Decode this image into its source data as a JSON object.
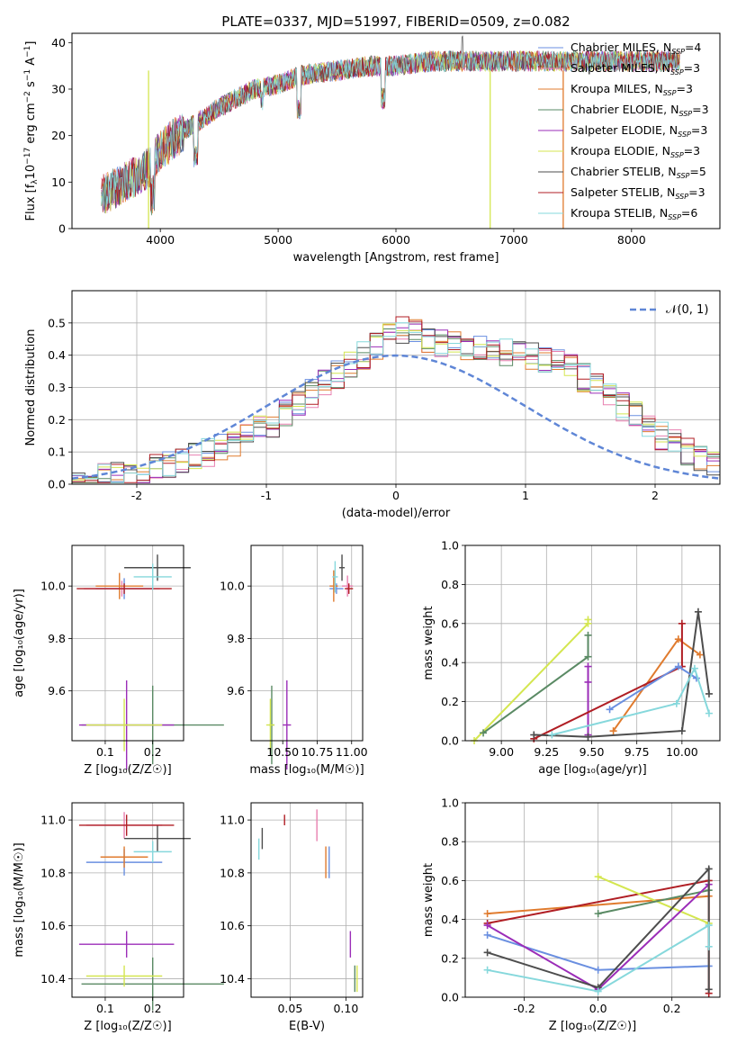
{
  "colors": {
    "Chabrier MILES": "#6a8fe0",
    "Salpeter MILES": "#e880b0",
    "Kroupa MILES": "#e07b2e",
    "Chabrier ELODIE": "#5a8a64",
    "Salpeter ELODIE": "#9b2db8",
    "Kroupa ELODIE": "#d4e650",
    "Chabrier STELIB": "#4d4d4d",
    "Salpeter STELIB": "#b01e24",
    "Kroupa STELIB": "#86d8dc",
    "normal": "#5f86d6"
  },
  "chart_data": [
    {
      "id": "spectrum",
      "type": "line",
      "title": "PLATE=0337, MJD=51997, FIBERID=0509, z=0.082",
      "xlabel": "wavelength [Angstrom, rest frame]",
      "ylabel_parts": [
        "Flux [f",
        "λ",
        "10",
        "−17",
        " erg cm",
        "−2",
        " s",
        "−1",
        " A",
        "−1",
        "]"
      ],
      "xlim": [
        3250,
        8750
      ],
      "ylim": [
        0,
        42
      ],
      "xticks": [
        4000,
        5000,
        6000,
        7000,
        8000
      ],
      "yticks": [
        0,
        10,
        20,
        30,
        40
      ],
      "legend_position": "right",
      "legend": [
        {
          "name": "Chabrier MILES",
          "nssp": "4"
        },
        {
          "name": "Salpeter MILES",
          "nssp": "3"
        },
        {
          "name": "Kroupa MILES",
          "nssp": "3"
        },
        {
          "name": "Chabrier ELODIE",
          "nssp": "3"
        },
        {
          "name": "Salpeter ELODIE",
          "nssp": "3"
        },
        {
          "name": "Kroupa ELODIE",
          "nssp": "3"
        },
        {
          "name": "Chabrier STELIB",
          "nssp": "5"
        },
        {
          "name": "Salpeter STELIB",
          "nssp": "3"
        },
        {
          "name": "Kroupa STELIB",
          "nssp": "6"
        }
      ],
      "continuum_x": [
        3500,
        3700,
        3900,
        4000,
        4200,
        4500,
        4800,
        5000,
        5200,
        5500,
        5800,
        6000,
        6300,
        6600,
        6900,
        7200,
        7500,
        7800,
        8100,
        8400
      ],
      "continuum_y": [
        7,
        10,
        13,
        17,
        21,
        26,
        30,
        31,
        33,
        34,
        35,
        35,
        36,
        36,
        36,
        36,
        36,
        36,
        36,
        36
      ],
      "dips_x": [
        3934,
        4300,
        5175,
        5890,
        6800,
        7400
      ],
      "dropouts": [
        {
          "series": "Kroupa ELODIE",
          "x": 6800
        },
        {
          "series": "Kroupa MILES",
          "x": 7420
        },
        {
          "series": "Kroupa ELODIE",
          "x": 3900
        }
      ]
    },
    {
      "id": "residuals",
      "type": "step",
      "xlabel": "(data-model)/error",
      "ylabel": "Normed distribution",
      "xlim": [
        -2.5,
        2.5
      ],
      "ylim": [
        0,
        0.6
      ],
      "xticks": [
        -2,
        -1,
        0,
        1,
        2
      ],
      "yticks": [
        0.0,
        0.1,
        0.2,
        0.3,
        0.4,
        0.5
      ],
      "grid": true,
      "legend": [
        {
          "name": "𝒩(0, 1)",
          "style": "dashed",
          "position": "top-right"
        }
      ],
      "bin_edges_start": -2.5,
      "bin_width": 0.1,
      "base_counts": [
        0.02,
        0.02,
        0.03,
        0.03,
        0.04,
        0.04,
        0.05,
        0.06,
        0.07,
        0.09,
        0.1,
        0.11,
        0.13,
        0.15,
        0.17,
        0.19,
        0.22,
        0.25,
        0.28,
        0.31,
        0.34,
        0.37,
        0.4,
        0.43,
        0.46,
        0.48,
        0.47,
        0.45,
        0.44,
        0.43,
        0.42,
        0.42,
        0.41,
        0.41,
        0.4,
        0.4,
        0.39,
        0.38,
        0.36,
        0.33,
        0.3,
        0.27,
        0.24,
        0.21,
        0.18,
        0.15,
        0.13,
        0.1,
        0.08,
        0.07
      ]
    },
    {
      "id": "age_vs_Z",
      "type": "errorbar",
      "xlabel": "Z [log₁₀(Z/Z☉)]",
      "ylabel": "age  [log₁₀(age/yr)]",
      "xlim": [
        0.03,
        0.265
      ],
      "ylim": [
        9.41,
        10.155
      ],
      "xticks": [
        0.1,
        0.2
      ],
      "yticks": [
        9.6,
        9.8,
        10.0
      ],
      "grid": true,
      "points": [
        {
          "series": "Chabrier MILES",
          "x": 0.14,
          "y": 9.99,
          "xerr": 0.06,
          "yerr": 0.04
        },
        {
          "series": "Salpeter MILES",
          "x": 0.135,
          "y": 9.99,
          "xerr": 0.08,
          "yerr": 0.03
        },
        {
          "series": "Kroupa MILES",
          "x": 0.13,
          "y": 10.0,
          "xerr": 0.05,
          "yerr": 0.05
        },
        {
          "series": "Chabrier ELODIE",
          "x": 0.2,
          "y": 9.47,
          "xerr": 0.15,
          "yerr": 0.15
        },
        {
          "series": "Salpeter ELODIE",
          "x": 0.145,
          "y": 9.47,
          "xerr": 0.1,
          "yerr": 0.17
        },
        {
          "series": "Kroupa ELODIE",
          "x": 0.14,
          "y": 9.47,
          "xerr": 0.08,
          "yerr": 0.1
        },
        {
          "series": "Chabrier STELIB",
          "x": 0.21,
          "y": 10.07,
          "xerr": 0.07,
          "yerr": 0.05
        },
        {
          "series": "Salpeter STELIB",
          "x": 0.14,
          "y": 9.99,
          "xerr": 0.1,
          "yerr": 0.02
        },
        {
          "series": "Kroupa STELIB",
          "x": 0.2,
          "y": 10.035,
          "xerr": 0.04,
          "yerr": 0.05
        }
      ]
    },
    {
      "id": "age_vs_mass",
      "type": "errorbar",
      "xlabel": "mass [log₁₀(M/M☉)]",
      "ylabel": "",
      "xlim": [
        10.27,
        11.08
      ],
      "ylim": [
        9.41,
        10.155
      ],
      "xticks": [
        10.5,
        10.75,
        11.0
      ],
      "yticks": [
        9.6,
        9.8,
        10.0
      ],
      "grid": true,
      "points": [
        {
          "series": "Chabrier MILES",
          "x": 10.89,
          "y": 9.99,
          "xerr": 0.05,
          "yerr": 0.02
        },
        {
          "series": "Salpeter MILES",
          "x": 10.97,
          "y": 10.0,
          "xerr": 0.04,
          "yerr": 0.04
        },
        {
          "series": "Kroupa MILES",
          "x": 10.87,
          "y": 10.0,
          "xerr": 0.03,
          "yerr": 0.06
        },
        {
          "series": "Chabrier ELODIE",
          "x": 10.42,
          "y": 9.47,
          "xerr": 0.02,
          "yerr": 0.15
        },
        {
          "series": "Salpeter ELODIE",
          "x": 10.53,
          "y": 9.47,
          "xerr": 0.03,
          "yerr": 0.17
        },
        {
          "series": "Kroupa ELODIE",
          "x": 10.41,
          "y": 9.47,
          "xerr": 0.03,
          "yerr": 0.1
        },
        {
          "series": "Chabrier STELIB",
          "x": 10.93,
          "y": 10.07,
          "xerr": 0.02,
          "yerr": 0.05
        },
        {
          "series": "Salpeter STELIB",
          "x": 10.98,
          "y": 9.99,
          "xerr": 0.03,
          "yerr": 0.02
        },
        {
          "series": "Kroupa STELIB",
          "x": 10.88,
          "y": 10.035,
          "xerr": 0.02,
          "yerr": 0.06
        }
      ]
    },
    {
      "id": "weight_vs_age",
      "type": "line",
      "xlabel": "age  [log₁₀(age/yr)]",
      "ylabel": "mass weight",
      "xlim": [
        8.8,
        10.21
      ],
      "ylim": [
        0,
        1.0
      ],
      "xticks": [
        9.0,
        9.25,
        9.5,
        9.75,
        10.0
      ],
      "yticks": [
        0.0,
        0.2,
        0.4,
        0.6,
        0.8,
        1.0
      ],
      "grid": true,
      "series": [
        {
          "name": "Kroupa ELODIE",
          "x": [
            8.85,
            9.48,
            9.48
          ],
          "y": [
            0.0,
            0.6,
            0.62
          ]
        },
        {
          "name": "Chabrier ELODIE",
          "x": [
            8.9,
            9.48,
            9.48
          ],
          "y": [
            0.04,
            0.43,
            0.54
          ]
        },
        {
          "name": "Salpeter ELODIE",
          "x": [
            9.48,
            9.48,
            9.48
          ],
          "y": [
            0.38,
            0.03,
            0.3
          ]
        },
        {
          "name": "Kroupa MILES",
          "x": [
            9.62,
            9.98,
            10.1
          ],
          "y": [
            0.05,
            0.52,
            0.44
          ]
        },
        {
          "name": "Salpeter STELIB",
          "x": [
            9.18,
            10.0,
            10.0
          ],
          "y": [
            0.01,
            0.38,
            0.6
          ]
        },
        {
          "name": "Chabrier STELIB",
          "x": [
            9.18,
            9.48,
            10.0,
            10.09,
            10.15
          ],
          "y": [
            0.03,
            0.02,
            0.05,
            0.66,
            0.24
          ]
        },
        {
          "name": "Chabrier MILES",
          "x": [
            9.6,
            9.98,
            10.08
          ],
          "y": [
            0.16,
            0.38,
            0.32
          ]
        },
        {
          "name": "Kroupa STELIB",
          "x": [
            9.28,
            9.97,
            10.07,
            10.15
          ],
          "y": [
            0.03,
            0.19,
            0.37,
            0.14
          ]
        }
      ]
    },
    {
      "id": "mass_vs_Z",
      "type": "errorbar",
      "xlabel": "Z [log₁₀(Z/Z☉)]",
      "ylabel": "mass [log₁₀(M/M☉)]",
      "xlim": [
        0.03,
        0.265
      ],
      "ylim": [
        10.33,
        11.065
      ],
      "xticks": [
        0.1,
        0.2
      ],
      "yticks": [
        10.4,
        10.6,
        10.8,
        11.0
      ],
      "grid": true,
      "points": [
        {
          "series": "Chabrier MILES",
          "x": 0.14,
          "y": 10.84,
          "xerr": 0.08,
          "yerr": 0.05
        },
        {
          "series": "Salpeter MILES",
          "x": 0.14,
          "y": 10.98,
          "xerr": 0.08,
          "yerr": 0.05
        },
        {
          "series": "Kroupa MILES",
          "x": 0.14,
          "y": 10.86,
          "xerr": 0.05,
          "yerr": 0.04
        },
        {
          "series": "Chabrier ELODIE",
          "x": 0.2,
          "y": 10.38,
          "xerr": 0.15,
          "yerr": 0.1
        },
        {
          "series": "Salpeter ELODIE",
          "x": 0.145,
          "y": 10.53,
          "xerr": 0.1,
          "yerr": 0.05
        },
        {
          "series": "Kroupa ELODIE",
          "x": 0.14,
          "y": 10.41,
          "xerr": 0.08,
          "yerr": 0.04
        },
        {
          "series": "Chabrier STELIB",
          "x": 0.21,
          "y": 10.93,
          "xerr": 0.07,
          "yerr": 0.05
        },
        {
          "series": "Salpeter STELIB",
          "x": 0.145,
          "y": 10.98,
          "xerr": 0.1,
          "yerr": 0.04
        },
        {
          "series": "Kroupa STELIB",
          "x": 0.2,
          "y": 10.88,
          "xerr": 0.04,
          "yerr": 0.04
        }
      ]
    },
    {
      "id": "mass_vs_ebv",
      "type": "errorbar",
      "xlabel": "E(B-V)",
      "ylabel": "",
      "xlim": [
        0.015,
        0.115
      ],
      "ylim": [
        10.33,
        11.065
      ],
      "xticks": [
        0.05,
        0.1
      ],
      "yticks": [
        10.4,
        10.6,
        10.8,
        11.0
      ],
      "grid": true,
      "points": [
        {
          "series": "Chabrier MILES",
          "x": 0.085,
          "y": 10.84,
          "xerr": 0,
          "yerr": 0.06
        },
        {
          "series": "Salpeter MILES",
          "x": 0.074,
          "y": 10.98,
          "xerr": 0,
          "yerr": 0.06
        },
        {
          "series": "Kroupa MILES",
          "x": 0.082,
          "y": 10.84,
          "xerr": 0,
          "yerr": 0.06
        },
        {
          "series": "Chabrier ELODIE",
          "x": 0.108,
          "y": 10.4,
          "xerr": 0,
          "yerr": 0.05
        },
        {
          "series": "Salpeter ELODIE",
          "x": 0.104,
          "y": 10.53,
          "xerr": 0,
          "yerr": 0.05
        },
        {
          "series": "Kroupa ELODIE",
          "x": 0.11,
          "y": 10.4,
          "xerr": 0,
          "yerr": 0.05
        },
        {
          "series": "Chabrier STELIB",
          "x": 0.025,
          "y": 10.93,
          "xerr": 0,
          "yerr": 0.04
        },
        {
          "series": "Salpeter STELIB",
          "x": 0.045,
          "y": 11.0,
          "xerr": 0,
          "yerr": 0.02
        },
        {
          "series": "Kroupa STELIB",
          "x": 0.022,
          "y": 10.89,
          "xerr": 0,
          "yerr": 0.04
        }
      ]
    },
    {
      "id": "weight_vs_Z",
      "type": "line",
      "xlabel": "Z [log₁₀(Z/Z☉)]",
      "ylabel": "mass weight",
      "xlim": [
        -0.36,
        0.33
      ],
      "ylim": [
        0,
        1.0
      ],
      "xticks": [
        -0.2,
        0.0,
        0.2
      ],
      "yticks": [
        0.0,
        0.2,
        0.4,
        0.6,
        0.8,
        1.0
      ],
      "grid": true,
      "series": [
        {
          "name": "Kroupa MILES",
          "x": [
            -0.3,
            0.3
          ],
          "y": [
            0.43,
            0.52
          ]
        },
        {
          "name": "Salpeter STELIB",
          "x": [
            -0.3,
            0.3,
            0.3
          ],
          "y": [
            0.38,
            0.6,
            0.02
          ]
        },
        {
          "name": "Kroupa ELODIE",
          "x": [
            0.0,
            0.3
          ],
          "y": [
            0.62,
            0.38
          ]
        },
        {
          "name": "Chabrier ELODIE",
          "x": [
            0.0,
            0.3
          ],
          "y": [
            0.43,
            0.55
          ]
        },
        {
          "name": "Chabrier MILES",
          "x": [
            -0.3,
            0.0,
            0.3
          ],
          "y": [
            0.32,
            0.14,
            0.16
          ]
        },
        {
          "name": "Salpeter ELODIE",
          "x": [
            -0.3,
            0.0,
            0.3
          ],
          "y": [
            0.37,
            0.04,
            0.58
          ]
        },
        {
          "name": "Chabrier STELIB",
          "x": [
            -0.3,
            0.0,
            0.3,
            0.3
          ],
          "y": [
            0.23,
            0.05,
            0.66,
            0.04
          ]
        },
        {
          "name": "Kroupa STELIB",
          "x": [
            -0.3,
            0.0,
            0.3,
            0.3
          ],
          "y": [
            0.14,
            0.03,
            0.37,
            0.26
          ]
        }
      ]
    }
  ]
}
